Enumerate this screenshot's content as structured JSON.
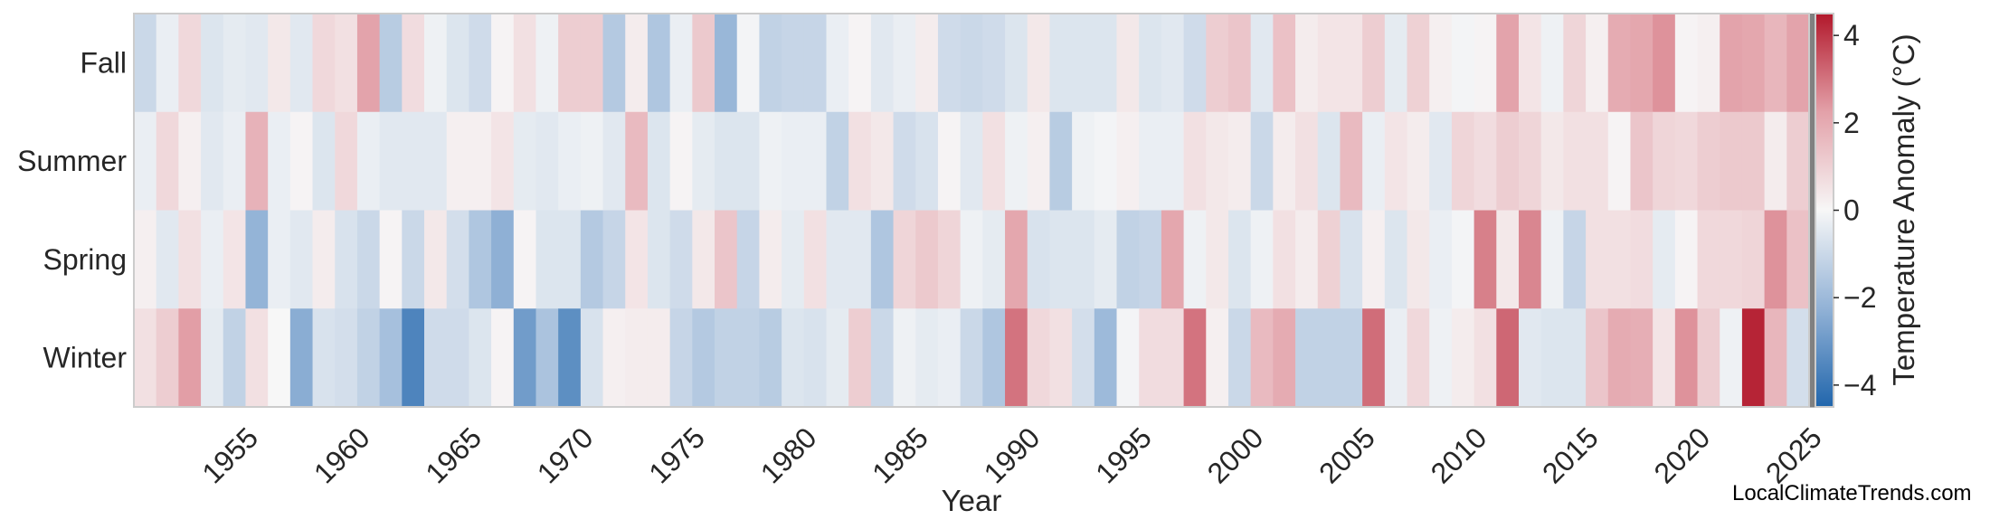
{
  "chart_data": {
    "type": "heatmap",
    "xlabel": "Year",
    "ylabel": "",
    "colorbar_label": "Temperature Anomaly (°C)",
    "colorbar_range": [
      -4.5,
      4.5
    ],
    "colorbar_ticks": [
      4,
      2,
      0,
      -2,
      -4
    ],
    "colorscale": "diverging blue-white-red",
    "missing_color": "#808080",
    "x_range": [
      1951,
      2025
    ],
    "x_ticks": [
      1955,
      1960,
      1965,
      1970,
      1975,
      1980,
      1985,
      1990,
      1995,
      2000,
      2005,
      2010,
      2015,
      2020,
      2025
    ],
    "rows": [
      "Fall",
      "Summer",
      "Spring",
      "Winter"
    ],
    "years": [
      1951,
      1952,
      1953,
      1954,
      1955,
      1956,
      1957,
      1958,
      1959,
      1960,
      1961,
      1962,
      1963,
      1964,
      1965,
      1966,
      1967,
      1968,
      1969,
      1970,
      1971,
      1972,
      1973,
      1974,
      1975,
      1976,
      1977,
      1978,
      1979,
      1980,
      1981,
      1982,
      1983,
      1984,
      1985,
      1986,
      1987,
      1988,
      1989,
      1990,
      1991,
      1992,
      1993,
      1994,
      1995,
      1996,
      1997,
      1998,
      1999,
      2000,
      2001,
      2002,
      2003,
      2004,
      2005,
      2006,
      2007,
      2008,
      2009,
      2010,
      2011,
      2012,
      2013,
      2014,
      2015,
      2016,
      2017,
      2018,
      2019,
      2020,
      2021,
      2022,
      2023,
      2024,
      2025
    ],
    "values": {
      "Fall": [
        -1.0,
        -0.3,
        0.8,
        -0.6,
        -0.4,
        -0.5,
        0.4,
        -0.5,
        0.8,
        0.6,
        2.2,
        -1.4,
        0.7,
        -0.2,
        -0.6,
        -0.9,
        0.1,
        0.6,
        -0.2,
        1.1,
        1.1,
        -1.5,
        0.3,
        -1.6,
        -0.3,
        1.2,
        -2.1,
        -0.1,
        -1.2,
        -1.1,
        -1.1,
        -0.3,
        0.1,
        -0.5,
        -0.3,
        0.3,
        -0.9,
        -1.0,
        -0.9,
        -0.6,
        0.4,
        -0.6,
        -0.6,
        -0.6,
        0.4,
        -0.6,
        -0.5,
        -0.9,
        1.1,
        1.3,
        -0.5,
        1.4,
        0.3,
        0.5,
        0.5,
        1.1,
        -0.4,
        1.0,
        0.2,
        -0.1,
        0.1,
        2.2,
        0.5,
        -0.2,
        0.9,
        0.2,
        2.0,
        2.1,
        2.5,
        0.1,
        0.2,
        2.2,
        2.1,
        1.7,
        2.2,
        null
      ],
      "Summer": [
        -0.3,
        0.8,
        0.2,
        -0.5,
        -0.3,
        1.8,
        -0.3,
        0.1,
        -0.6,
        0.8,
        -0.3,
        -0.5,
        -0.5,
        -0.5,
        0.2,
        0.2,
        0.5,
        -0.4,
        -0.5,
        -0.3,
        -0.2,
        -0.5,
        1.6,
        -0.6,
        0.1,
        -0.4,
        -0.6,
        -0.6,
        -0.2,
        -0.3,
        -0.3,
        -1.2,
        0.6,
        0.4,
        -0.9,
        -0.7,
        0.1,
        -0.5,
        0.6,
        -0.2,
        0.2,
        -1.4,
        -0.2,
        -0.1,
        0.2,
        -0.3,
        -0.3,
        0.6,
        0.4,
        0.3,
        -1.0,
        0.3,
        0.6,
        -0.6,
        1.6,
        -0.3,
        0.5,
        0.3,
        -0.5,
        0.9,
        0.7,
        1.1,
        0.9,
        0.4,
        0.6,
        0.6,
        0.1,
        1.3,
        0.9,
        0.8,
        1.1,
        1.2,
        1.2,
        0.3,
        1.1,
        null
      ],
      "Spring": [
        0.2,
        -0.5,
        0.6,
        -0.3,
        0.5,
        -2.2,
        -0.3,
        -0.5,
        0.3,
        -0.7,
        -1.0,
        0.1,
        -1.0,
        0.4,
        -0.8,
        -1.6,
        -2.3,
        0.1,
        -0.6,
        -0.6,
        -1.5,
        -1.1,
        0.5,
        -0.6,
        -0.9,
        0.4,
        1.3,
        -1.1,
        0.3,
        -0.4,
        0.6,
        -0.5,
        -0.5,
        -1.6,
        0.9,
        1.2,
        0.9,
        -0.2,
        -0.4,
        2.1,
        -0.7,
        -0.6,
        -0.6,
        -0.4,
        -1.2,
        -1.1,
        2.1,
        -0.2,
        0.4,
        -0.6,
        -0.2,
        0.6,
        0.3,
        1.0,
        -0.7,
        0.2,
        -0.6,
        0.4,
        -0.3,
        -0.1,
        2.8,
        0.4,
        2.7,
        -0.2,
        -1.1,
        0.6,
        0.6,
        0.7,
        -0.4,
        0.1,
        0.8,
        0.8,
        0.9,
        2.5,
        1.4,
        null
      ],
      "Winter": [
        0.6,
        1.1,
        2.3,
        -0.4,
        -1.2,
        0.6,
        0.0,
        -2.4,
        -0.7,
        -0.8,
        -1.2,
        -1.8,
        -3.6,
        -0.9,
        -0.9,
        -0.6,
        0.1,
        -2.9,
        -1.7,
        -3.3,
        -0.7,
        0.2,
        0.3,
        0.3,
        -1.1,
        -1.5,
        -1.2,
        -1.2,
        -1.4,
        -0.6,
        -0.7,
        -0.4,
        1.1,
        -1.0,
        -0.2,
        -0.4,
        -0.3,
        -1.0,
        -1.6,
        3.0,
        0.8,
        0.6,
        -0.8,
        -2.0,
        -0.1,
        0.7,
        0.7,
        3.0,
        0.2,
        -1.0,
        1.6,
        2.0,
        -1.2,
        -1.2,
        -1.2,
        3.1,
        -0.3,
        0.8,
        -0.2,
        0.3,
        0.6,
        3.2,
        -0.5,
        -0.6,
        -0.6,
        1.3,
        2.0,
        1.9,
        0.5,
        2.5,
        1.1,
        -0.2,
        4.3,
        1.7,
        -0.8,
        null
      ]
    }
  },
  "credit": "LocalClimateTrends.com"
}
